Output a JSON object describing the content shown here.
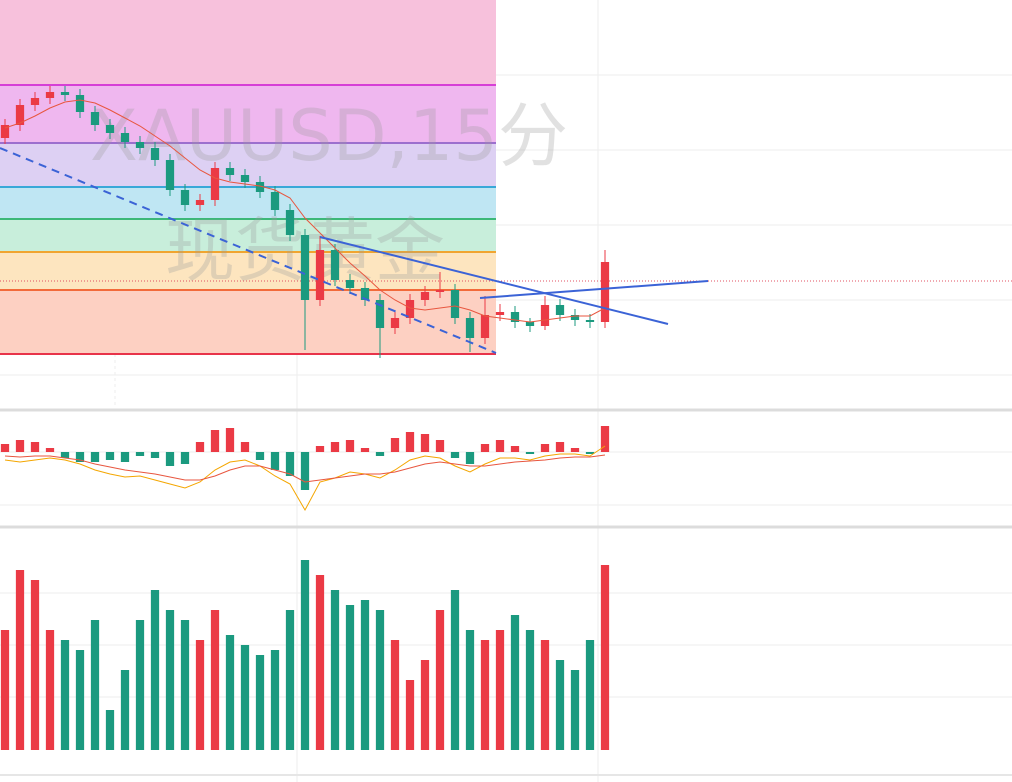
{
  "chart_data": {
    "type": "candlestick",
    "watermark": "XAUUSD,15分",
    "watermark_subtitle": "现货黄金",
    "xlim": [
      0,
      1012
    ],
    "ylim": [
      0,
      408
    ],
    "up_color": "#eb3a45",
    "down_color": "#1b9a7f",
    "x": [
      5,
      20,
      35,
      50,
      65,
      80,
      95,
      110,
      125,
      140,
      155,
      170,
      185,
      200,
      215,
      230,
      245,
      260,
      275,
      290,
      305,
      320,
      335,
      350,
      365,
      380,
      395,
      410,
      425,
      440,
      455,
      470,
      485,
      500,
      515,
      530,
      545,
      560,
      575,
      590,
      605
    ],
    "open": [
      270,
      283,
      303,
      310,
      316,
      313,
      296,
      283,
      275,
      266,
      260,
      248,
      218,
      203,
      208,
      240,
      233,
      226,
      216,
      198,
      173,
      108,
      158,
      128,
      120,
      108,
      80,
      90,
      108,
      116,
      118,
      90,
      70,
      93,
      96,
      86,
      82,
      103,
      93,
      88,
      86
    ],
    "close": [
      283,
      303,
      310,
      316,
      313,
      296,
      283,
      275,
      266,
      260,
      248,
      218,
      203,
      208,
      240,
      233,
      226,
      216,
      198,
      173,
      108,
      158,
      128,
      120,
      108,
      80,
      90,
      108,
      116,
      118,
      90,
      70,
      93,
      96,
      86,
      82,
      103,
      93,
      88,
      86,
      146
    ],
    "high": [
      289,
      309,
      316,
      322,
      322,
      319,
      302,
      289,
      281,
      272,
      266,
      254,
      224,
      214,
      246,
      246,
      239,
      232,
      222,
      204,
      179,
      172,
      164,
      134,
      126,
      114,
      96,
      114,
      122,
      136,
      124,
      96,
      112,
      104,
      102,
      90,
      112,
      109,
      99,
      94,
      158
    ],
    "low": [
      264,
      277,
      297,
      304,
      307,
      290,
      277,
      269,
      260,
      254,
      242,
      212,
      197,
      197,
      202,
      227,
      220,
      210,
      192,
      167,
      58,
      102,
      122,
      114,
      102,
      50,
      74,
      84,
      102,
      110,
      84,
      56,
      64,
      87,
      80,
      76,
      78,
      87,
      82,
      80,
      80
    ],
    "ma": {
      "color": "#e8563f",
      "values": [
        280,
        285,
        292,
        300,
        306,
        308,
        305,
        298,
        290,
        282,
        272,
        262,
        250,
        238,
        230,
        226,
        224,
        222,
        218,
        210,
        190,
        175,
        160,
        145,
        132,
        118,
        108,
        100,
        98,
        100,
        102,
        98,
        92,
        90,
        88,
        86,
        88,
        90,
        92,
        92,
        100
      ]
    },
    "price_line": 127,
    "fib": {
      "x_end": 496,
      "levels": [
        {
          "value": 323,
          "color": "#d63fd6",
          "fill": "#f7c1dc"
        },
        {
          "value": 265,
          "color": "#9c6fce",
          "fill": "#efb7ef"
        },
        {
          "value": 221,
          "color": "#39a8d8",
          "fill": "#ddd0f3"
        },
        {
          "value": 189,
          "color": "#3cb878",
          "fill": "#bfe6f3"
        },
        {
          "value": 156,
          "color": "#f0a530",
          "fill": "#c8eedb"
        },
        {
          "value": 118,
          "color": "#f26a3a",
          "fill": "#fde5bf"
        },
        {
          "value": 54,
          "color": "#e8334a",
          "fill": "#fdd0c2"
        }
      ]
    },
    "trend_lines": [
      {
        "x": [
          0,
          496
        ],
        "y": [
          260,
          55
        ],
        "color": "#3b63d6",
        "dashed": true
      },
      {
        "x": [
          320,
          668
        ],
        "y": [
          171,
          84
        ],
        "color": "#3b63d6",
        "dashed": false
      },
      {
        "x": [
          480,
          708
        ],
        "y": [
          110,
          127
        ],
        "color": "#3b63d6",
        "dashed": false
      }
    ],
    "macd": {
      "ylim": [
        -73,
        40
      ],
      "histogram": [
        8,
        12,
        10,
        4,
        -6,
        -10,
        -10,
        -8,
        -10,
        -4,
        -6,
        -14,
        -12,
        10,
        22,
        24,
        10,
        -8,
        -18,
        -24,
        -38,
        6,
        10,
        12,
        4,
        -4,
        14,
        20,
        18,
        12,
        -6,
        -12,
        8,
        12,
        6,
        -2,
        8,
        10,
        4,
        -2,
        26
      ],
      "dif": {
        "color": "#f4a600",
        "values": [
          -8,
          -10,
          -8,
          -6,
          -8,
          -12,
          -18,
          -22,
          -25,
          -24,
          -28,
          -32,
          -36,
          -30,
          -18,
          -10,
          -8,
          -14,
          -24,
          -32,
          -58,
          -30,
          -26,
          -20,
          -22,
          -26,
          -18,
          -8,
          -4,
          -6,
          -14,
          -20,
          -12,
          -6,
          -6,
          -8,
          -4,
          -2,
          -2,
          -4,
          6
        ]
      },
      "dea": {
        "color": "#e8563f",
        "values": [
          -4,
          -5,
          -4,
          -4,
          -6,
          -8,
          -12,
          -15,
          -18,
          -20,
          -22,
          -25,
          -28,
          -28,
          -24,
          -18,
          -14,
          -14,
          -18,
          -22,
          -30,
          -28,
          -26,
          -24,
          -22,
          -22,
          -20,
          -16,
          -12,
          -10,
          -12,
          -14,
          -14,
          -12,
          -10,
          -9,
          -8,
          -6,
          -5,
          -5,
          -3
        ]
      }
    },
    "volume": {
      "ylim": [
        0,
        210
      ],
      "values": [
        120,
        180,
        170,
        120,
        110,
        100,
        130,
        40,
        80,
        130,
        160,
        140,
        130,
        110,
        140,
        115,
        105,
        95,
        100,
        140,
        190,
        175,
        160,
        145,
        150,
        140,
        110,
        70,
        90,
        140,
        160,
        120,
        110,
        120,
        135,
        120,
        110,
        90,
        80,
        110,
        185
      ]
    }
  }
}
